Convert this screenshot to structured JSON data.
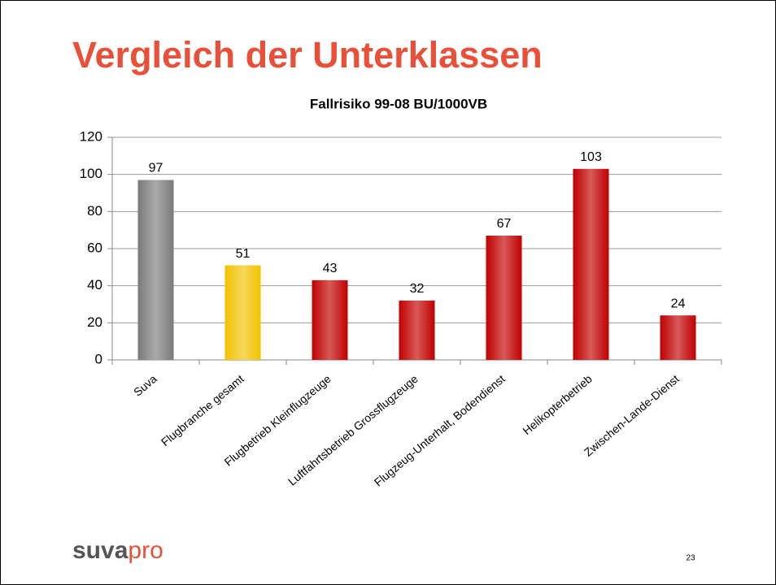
{
  "slide": {
    "title": "Vergleich der Unterklassen",
    "logo_a": "suva",
    "logo_b": "pro",
    "page_number": "23"
  },
  "chart_data": {
    "type": "bar",
    "title": "Fallrisiko 99-08 BU/1000VB",
    "categories": [
      "Suva",
      "Flugbranche gesamt",
      "Flugbetrieb Kleinflugzeuge",
      "Luftfahrtsbetrieb Grossflugzeuge",
      "Flugzeug-Unterhalt, Bodendienst",
      "Helikopterbetrieb",
      "Zwischen-Lande-Dienst"
    ],
    "values": [
      97,
      51,
      43,
      32,
      67,
      103,
      24
    ],
    "colors": [
      "#7a7a7a",
      "#f2c200",
      "#c00000",
      "#c00000",
      "#c00000",
      "#c00000",
      "#c00000"
    ],
    "ylim": [
      0,
      120
    ],
    "yticks": [
      0,
      20,
      40,
      60,
      80,
      100,
      120
    ],
    "grid": true
  }
}
